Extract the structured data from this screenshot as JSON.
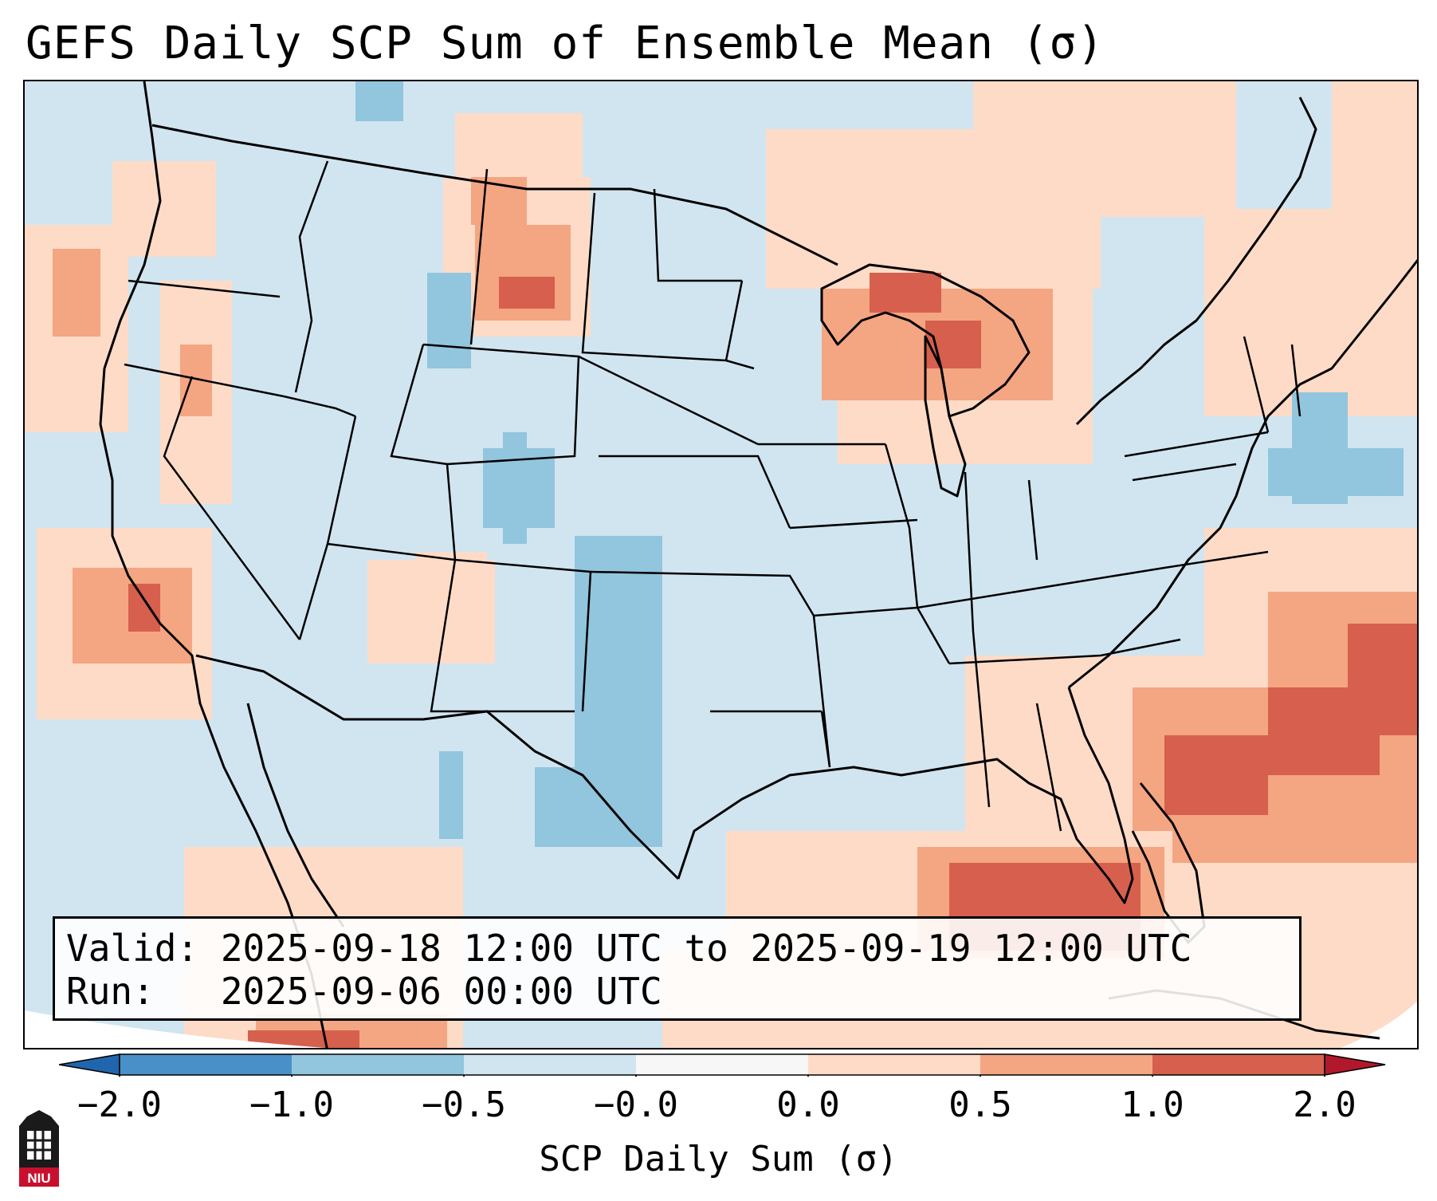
{
  "title": "GEFS Daily SCP Sum of Ensemble Mean (σ)",
  "info_box": {
    "valid_line": "Valid: 2025-09-18 12:00 UTC to 2025-09-19 12:00 UTC",
    "run_line": "Run:   2025-09-06 00:00 UTC"
  },
  "colorbar": {
    "label": "SCP Daily Sum (σ)",
    "tick_labels": [
      "−2.0",
      "−1.0",
      "−0.5",
      "−0.0",
      "0.0",
      "0.5",
      "1.0",
      "2.0"
    ],
    "colors": [
      "#4a90c8",
      "#92c5de",
      "#d1e5f0",
      "#f7f7f7",
      "#fddbc7",
      "#f4a582",
      "#d6604d"
    ],
    "extend_low_color": "#2166ac",
    "extend_high_color": "#b2182b"
  },
  "map_colors": {
    "background": "#d1e5f0",
    "light_red": "#fddbc7",
    "mid_red": "#f4a582",
    "dark_red": "#d6604d",
    "light_blue": "#92c5de",
    "white_outside": "#ffffff"
  },
  "logo": {
    "text": "NIU",
    "icon": "niu-logo-icon"
  }
}
